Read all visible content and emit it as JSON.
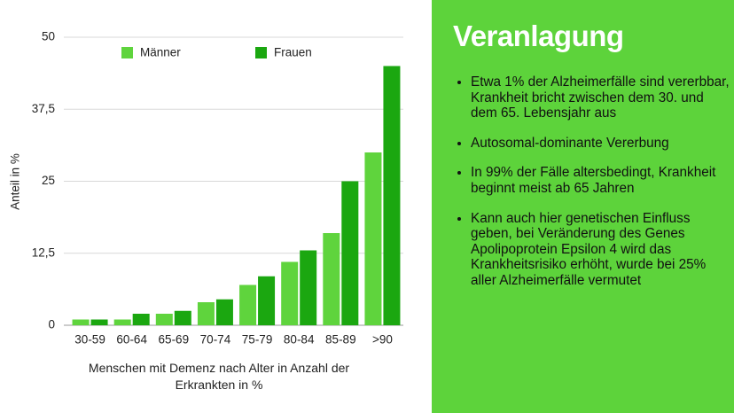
{
  "chart_data": {
    "type": "bar",
    "categories": [
      "30-59",
      "60-64",
      "65-69",
      "70-74",
      "75-79",
      "80-84",
      "85-89",
      ">90"
    ],
    "series": [
      {
        "name": "Männer",
        "color": "#5fd43d",
        "values": [
          1,
          1,
          2,
          4,
          7,
          11,
          16,
          30
        ]
      },
      {
        "name": "Frauen",
        "color": "#1ba710",
        "values": [
          1,
          2,
          2.5,
          4.5,
          8.5,
          13,
          25,
          45
        ]
      }
    ],
    "ylim": [
      0,
      50
    ],
    "yticks": [
      0,
      {
        "value": 12.5,
        "label": "12,5"
      },
      25,
      {
        "value": 37.5,
        "label": "37,5"
      },
      50
    ],
    "y_label": "Anteil in %",
    "x_label": "Menschen mit Demenz nach Alter in Anzahl der Erkrankten in %",
    "grid": true,
    "legend": "top"
  },
  "panel": {
    "title": "Veranlagung",
    "bullets": [
      "Etwa 1% der Alzheimerfälle sind vererbbar, Krankheit bricht zwischen dem 30. und dem 65. Lebensjahr aus",
      "Autosomal-dominante Vererbung",
      "In 99% der Fälle altersbedingt, Krankheit beginnt meist ab 65 Jahren",
      "Kann auch hier genetischen Einfluss geben, bei Veränderung des Genes Apolipoprotein Epsilon 4 wird das Krankheitsrisiko erhöht, wurde bei 25% aller Alzheimerfälle vermutet"
    ]
  }
}
